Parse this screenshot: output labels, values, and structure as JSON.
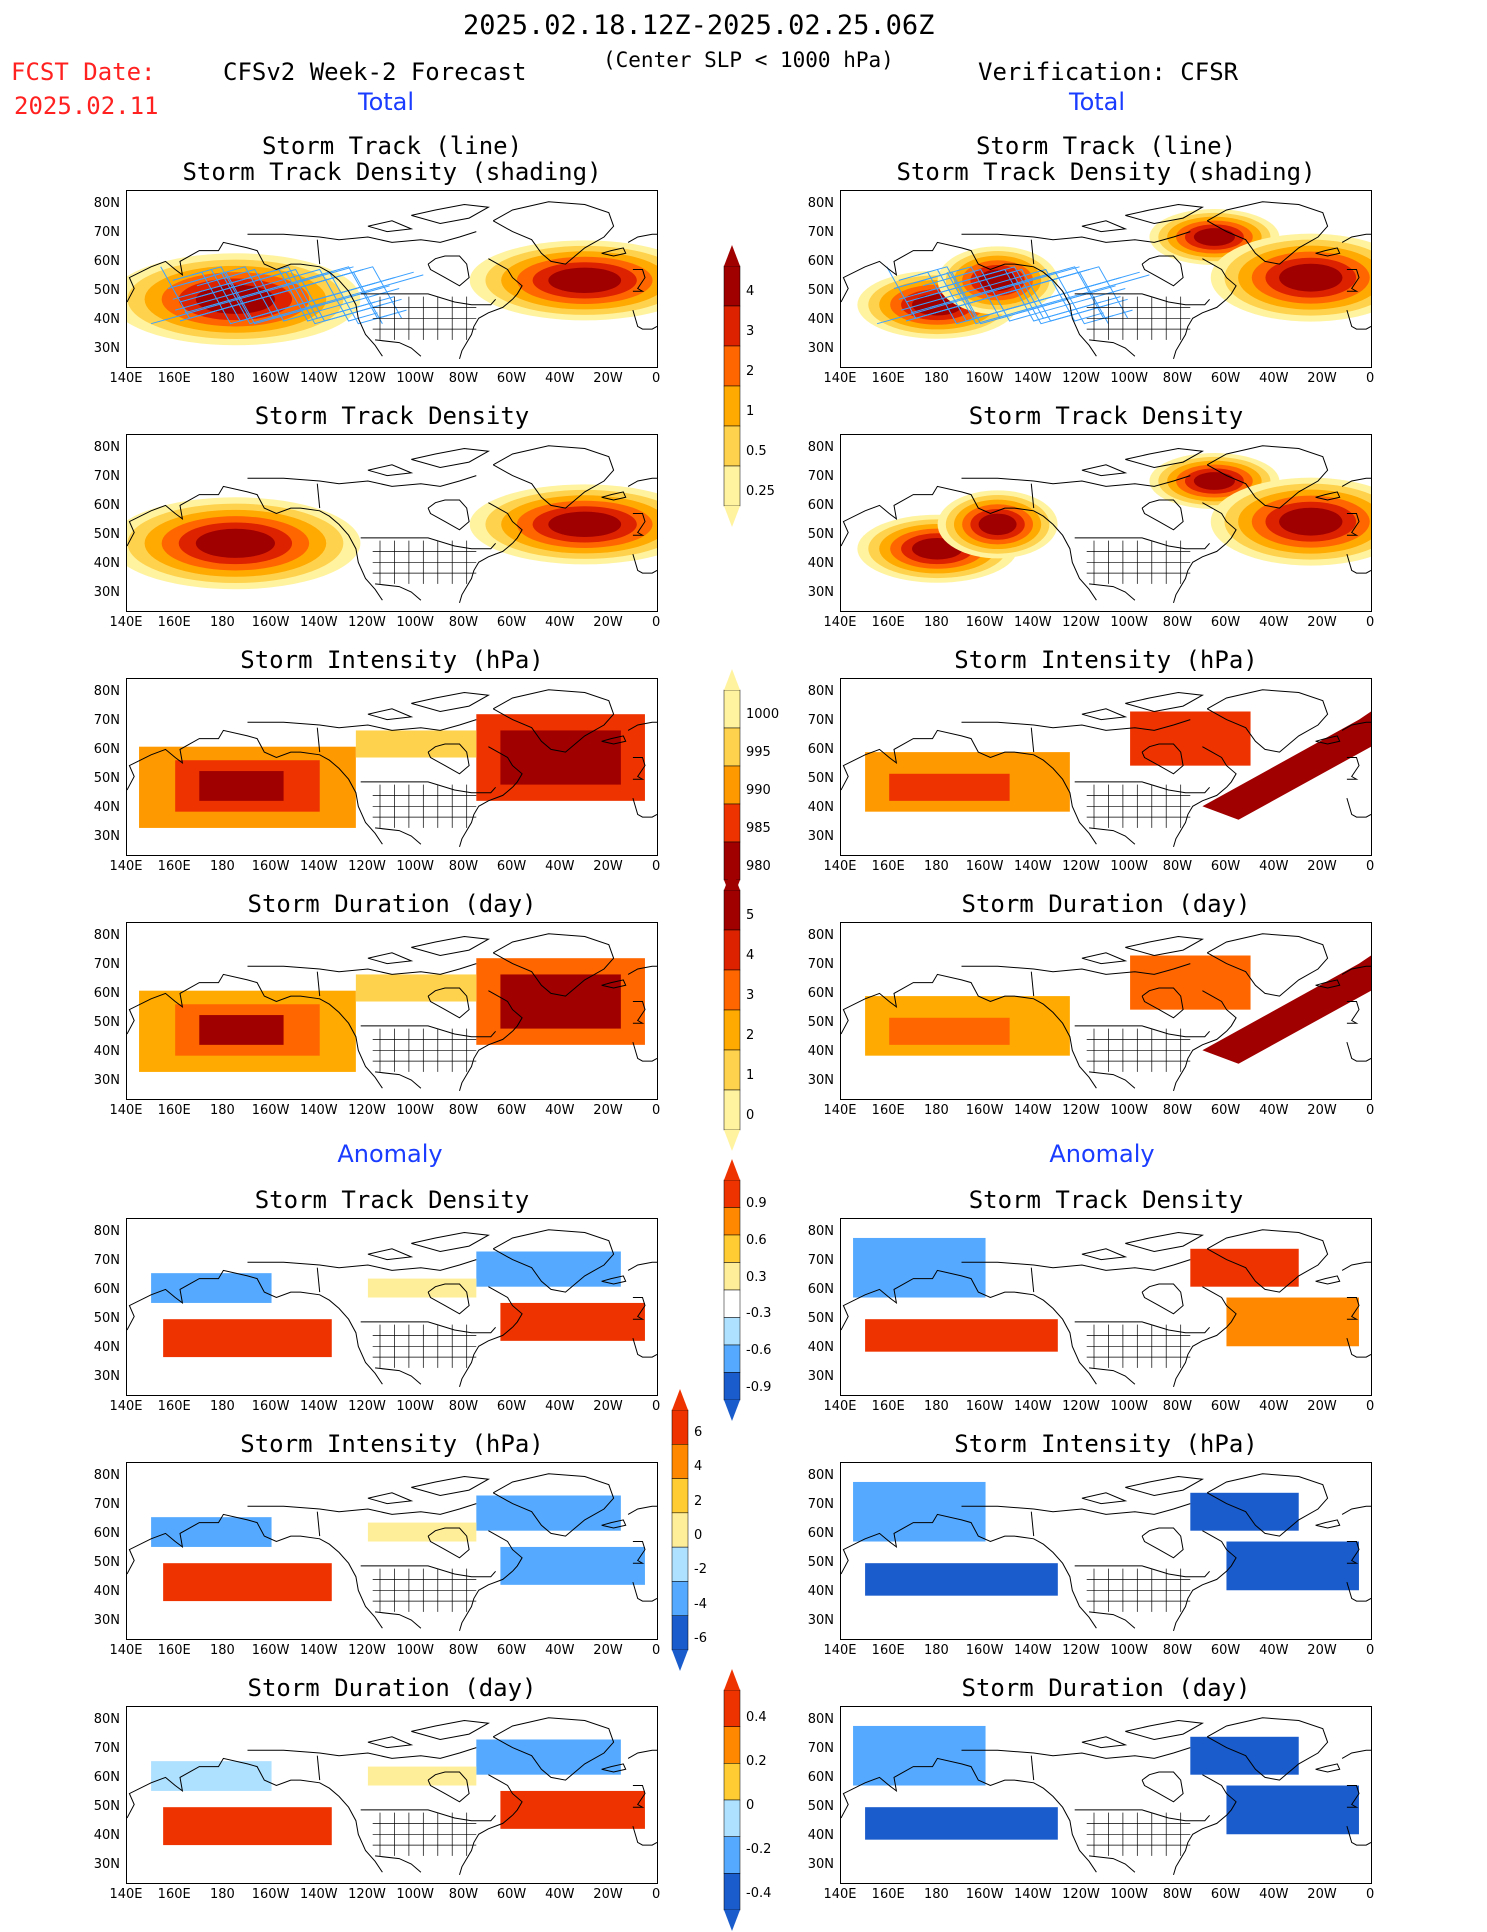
{
  "header": {
    "period": "2025.02.18.12Z-2025.02.25.06Z",
    "criterion": "(Center SLP < 1000 hPa)",
    "fcst_label": "FCST Date:",
    "fcst_date": "2025.02.11",
    "left_title": "CFSv2 Week-2 Forecast",
    "right_title": "Verification: CFSR",
    "total_left": "Total",
    "total_right": "Total",
    "anomaly_left": "Anomaly",
    "anomaly_right": "Anomaly"
  },
  "axes": {
    "lat_labels": [
      "80N",
      "70N",
      "60N",
      "50N",
      "40N",
      "30N"
    ],
    "lon_labels": [
      "140E",
      "160E",
      "180",
      "160W",
      "140W",
      "120W",
      "100W",
      "80W",
      "60W",
      "40W",
      "20W",
      "0"
    ]
  },
  "panels": {
    "p1": {
      "title1": "Storm Track (line)",
      "title2": "Storm Track Density (shading)"
    },
    "p2": {
      "title1": "Storm Track Density"
    },
    "p3": {
      "title1": "Storm Intensity (hPa)"
    },
    "p4": {
      "title1": "Storm Duration (day)"
    },
    "p5": {
      "title1": "Storm Track Density"
    },
    "p6": {
      "title1": "Storm Intensity (hPa)"
    },
    "p7": {
      "title1": "Storm Duration (day)"
    }
  },
  "colorbars": {
    "density": {
      "labels": [
        "4",
        "3",
        "2",
        "1",
        "0.5",
        "0.25"
      ],
      "colors": [
        "#a00000",
        "#dd2200",
        "#ff6600",
        "#ffaa00",
        "#ffd24d",
        "#fff3a0"
      ]
    },
    "intensity": {
      "labels": [
        "1000",
        "995",
        "990",
        "985",
        "980"
      ],
      "colors": [
        "#fff3a0",
        "#ffd24d",
        "#ff9900",
        "#ee3300",
        "#a00000"
      ]
    },
    "duration": {
      "labels": [
        "5",
        "4",
        "3",
        "2",
        "1",
        "0"
      ],
      "colors": [
        "#a00000",
        "#dd2200",
        "#ff6600",
        "#ffaa00",
        "#ffd24d",
        "#fff3a0"
      ]
    },
    "anom_density": {
      "labels": [
        "0.9",
        "0.6",
        "0.3",
        "-0.3",
        "-0.6",
        "-0.9"
      ],
      "colors": [
        "#ee3300",
        "#ff8800",
        "#ffcc33",
        "#ffee99",
        "#ffffff",
        "#aee0ff",
        "#55aaff",
        "#1a5ccc"
      ]
    },
    "anom_intensity": {
      "labels": [
        "6",
        "4",
        "2",
        "0",
        "-2",
        "-4",
        "-6"
      ],
      "colors": [
        "#ee3300",
        "#ff8800",
        "#ffcc33",
        "#ffee99",
        "#aee0ff",
        "#55aaff",
        "#1a5ccc"
      ]
    },
    "anom_duration": {
      "labels": [
        "0.4",
        "0.2",
        "0",
        "-0.2",
        "-0.4"
      ],
      "colors": [
        "#ee3300",
        "#ff8800",
        "#ffcc33",
        "#aee0ff",
        "#55aaff",
        "#1a5ccc"
      ]
    }
  }
}
